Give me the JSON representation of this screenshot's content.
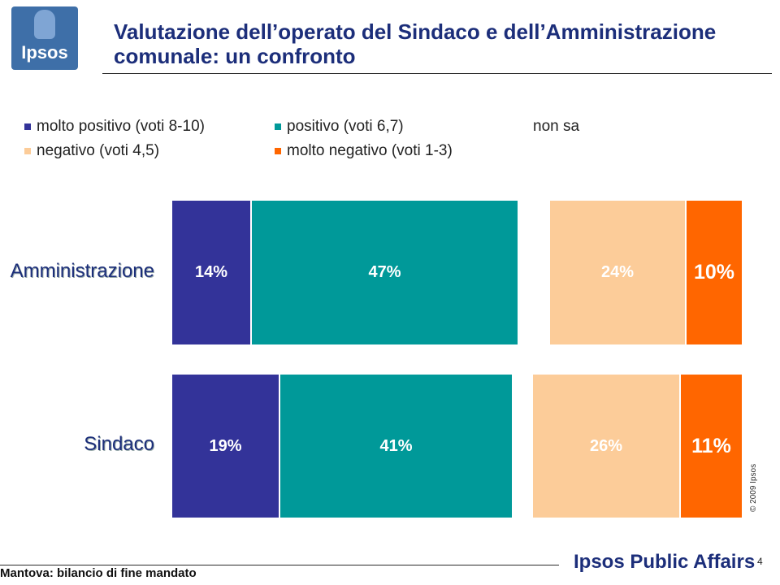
{
  "logo": {
    "text": "Ipsos"
  },
  "title": "Valutazione dell’operato del Sindaco e dell’Amministrazione comunale: un confronto",
  "legend": [
    {
      "label": "molto positivo (voti 8-10)",
      "color": "#333399"
    },
    {
      "label": "positivo (voti 6,7)",
      "color": "#009999"
    },
    {
      "label": "non sa",
      "color": ""
    },
    {
      "label": "negativo (voti 4,5)",
      "color": "#fccc99"
    },
    {
      "label": "molto negativo (voti 1-3)",
      "color": "#ff6600"
    }
  ],
  "chart_data": {
    "type": "bar",
    "orientation": "horizontal",
    "stacked": true,
    "categories": [
      "Amministrazione",
      "Sindaco"
    ],
    "series": [
      {
        "name": "molto positivo (voti 8-10)",
        "values": [
          14,
          19
        ],
        "labels": [
          "14%",
          "19%"
        ],
        "color": "#333399"
      },
      {
        "name": "positivo (voti 6,7)",
        "values": [
          47,
          41
        ],
        "labels": [
          "47%",
          "41%"
        ],
        "color": "#009999"
      },
      {
        "name": "negativo (voti 4,5)",
        "values": [
          24,
          26
        ],
        "labels": [
          "24%",
          "26%"
        ],
        "color": "#fccc99"
      },
      {
        "name": "molto negativo (voti 1-3)",
        "values": [
          10,
          11
        ],
        "labels": [
          "10%",
          "11%"
        ],
        "color": "#ff6600"
      }
    ]
  },
  "copyright": "© 2009 Ipsos",
  "footer": {
    "text": "Mantova: bilancio di fine mandato",
    "brand": "Ipsos Public Affairs",
    "page": "4"
  }
}
